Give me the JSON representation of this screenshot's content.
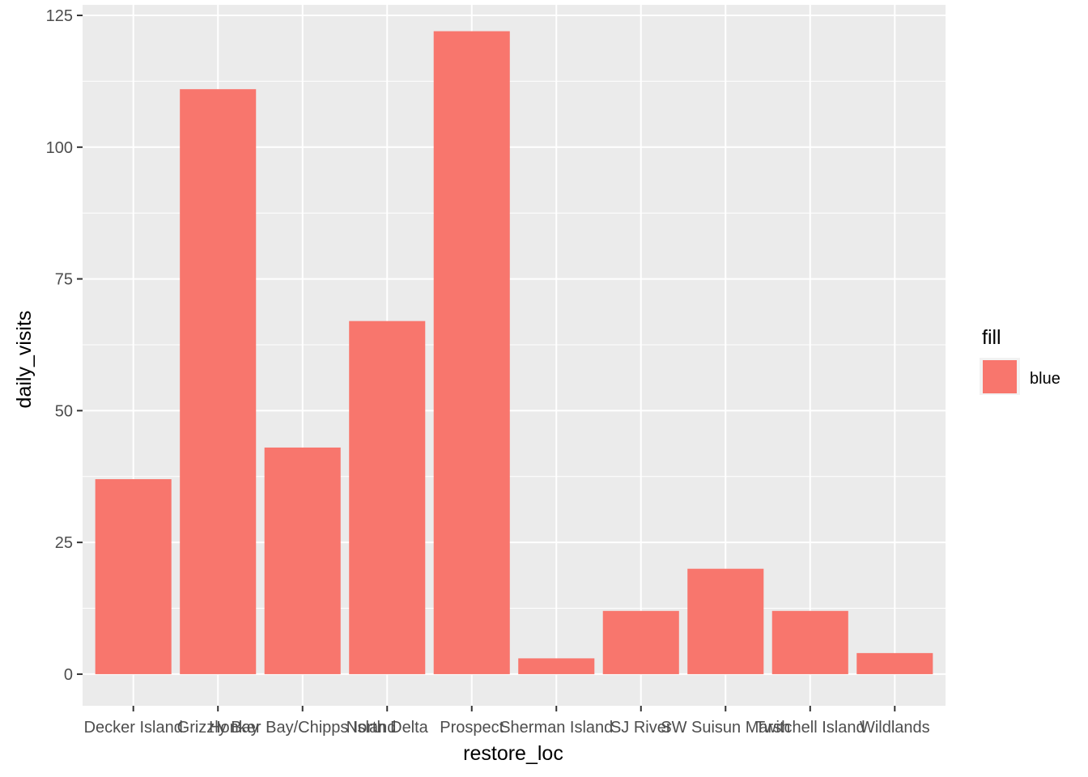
{
  "chart_data": {
    "type": "bar",
    "categories": [
      "Decker Island",
      "Grizzly Bay",
      "Honker Bay/Chipps Island",
      "North Delta",
      "Prospect",
      "Sherman Island",
      "SJ River",
      "SW Suisun Marsh",
      "Twitchell Island",
      "Wildlands"
    ],
    "values": [
      37,
      111,
      43,
      67,
      122,
      3,
      12,
      20,
      12,
      4
    ],
    "xlabel": "restore_loc",
    "ylabel": "daily_visits",
    "ylim": [
      -6,
      127
    ],
    "yticks": [
      0,
      25,
      50,
      75,
      100,
      125
    ],
    "grid": true,
    "legend": {
      "title": "fill",
      "entries": [
        {
          "label": "blue",
          "color": "#F8766D"
        }
      ],
      "placement": "right"
    },
    "colors": {
      "bar": "#F8766D",
      "panel": "#EBEBEB",
      "grid_major": "#FFFFFF",
      "tick": "#333333"
    }
  }
}
